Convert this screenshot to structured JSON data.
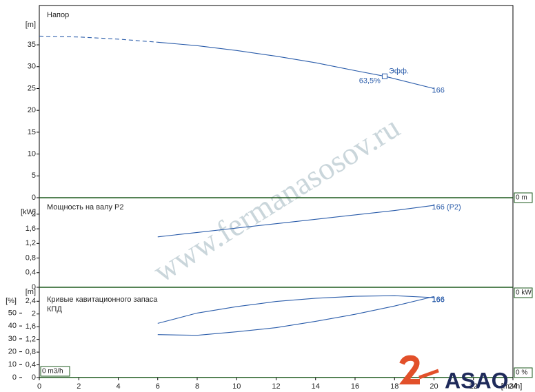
{
  "chart_data": [
    {
      "type": "line",
      "title": "Напор",
      "ylabel": "[m]",
      "xlim": [
        0,
        24
      ],
      "ylim": [
        0,
        44
      ],
      "yticks": [
        0,
        5,
        10,
        15,
        20,
        25,
        30,
        35
      ],
      "series": [
        {
          "color": "#2a5caa",
          "dashed": true,
          "x": [
            0,
            2,
            4,
            6
          ],
          "values": [
            37,
            36.8,
            36.3,
            35.6
          ]
        },
        {
          "color": "#2a5caa",
          "dashed": false,
          "label": "166",
          "x": [
            6,
            8,
            10,
            12,
            14,
            16,
            17.5,
            20
          ],
          "values": [
            35.6,
            34.8,
            33.7,
            32.4,
            30.9,
            29.1,
            27.8,
            25
          ]
        }
      ],
      "efficiency_point": {
        "x": 17.5,
        "y": 27.8,
        "label": "Эфф.",
        "efficiency": 63.5,
        "efficiency_label": "63,5%"
      },
      "readout": "0 m"
    },
    {
      "type": "line",
      "title": "Мощность на валу P2",
      "ylabel": "[kW]",
      "xlim": [
        0,
        24
      ],
      "ylim": [
        0,
        2.45
      ],
      "yticks": [
        0,
        {
          "value": 0.4,
          "label": "0,4"
        },
        {
          "value": 0.8,
          "label": "0,8"
        },
        {
          "value": 1.2,
          "label": "1,2"
        },
        {
          "value": 1.6,
          "label": "1,6"
        },
        2
      ],
      "series": [
        {
          "color": "#2a5caa",
          "dashed": false,
          "label": "166 (P2)",
          "x": [
            6,
            8,
            10,
            12,
            14,
            16,
            18,
            20
          ],
          "values": [
            1.38,
            1.5,
            1.62,
            1.74,
            1.86,
            1.98,
            2.1,
            2.24
          ]
        }
      ],
      "readout": "0 kW"
    },
    {
      "type": "line",
      "title": "Кривые кавитационного запаса",
      "subtitle": "КПД",
      "ylabel": "[m]",
      "y2label": "[%]",
      "xlabel": "[m3/h]",
      "xlim": [
        0,
        24
      ],
      "xticks": [
        0,
        2,
        4,
        6,
        8,
        10,
        12,
        14,
        16,
        18,
        20,
        22,
        24
      ],
      "ylim": [
        0,
        2.84
      ],
      "yticks": [
        0,
        {
          "value": 0.4,
          "label": "0,4"
        },
        {
          "value": 0.8,
          "label": "0,8"
        },
        {
          "value": 1.2,
          "label": "1,2"
        },
        {
          "value": 1.6,
          "label": "1,6"
        },
        2,
        {
          "value": 2.4,
          "label": "2,4"
        }
      ],
      "y2lim": [
        0,
        70
      ],
      "y2ticks": [
        0,
        10,
        20,
        30,
        40,
        50
      ],
      "series": [
        {
          "color": "#2a5caa",
          "dashed": false,
          "axis": "y2",
          "label": "166",
          "x": [
            6,
            8,
            10,
            12,
            14,
            16,
            18,
            20
          ],
          "values": [
            42,
            50,
            55,
            59,
            61.5,
            63,
            63.5,
            62
          ]
        },
        {
          "color": "#2a5caa",
          "dashed": false,
          "label": "166",
          "x": [
            6,
            8,
            10,
            12,
            14,
            16,
            18,
            20
          ],
          "values": [
            1.35,
            1.33,
            1.44,
            1.57,
            1.77,
            1.99,
            2.25,
            2.55
          ]
        }
      ],
      "readout": "0 %",
      "flow_readout": "0 m3/h"
    }
  ],
  "watermark": "www.fermanasosov.ru",
  "logo": "ASAO"
}
